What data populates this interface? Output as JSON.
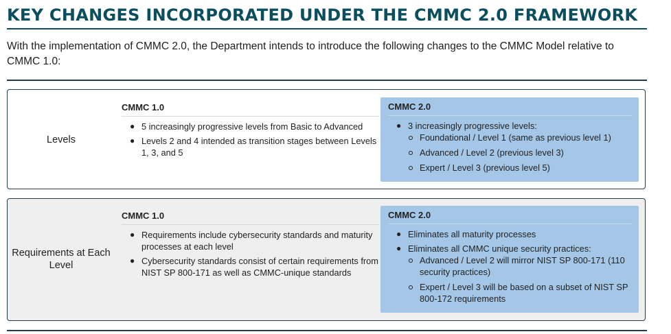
{
  "title": "KEY CHANGES INCORPORATED UNDER THE CMMC 2.0 FRAMEWORK",
  "intro": "With the implementation of CMMC 2.0, the Department intends to introduce the following changes to the CMMC Model relative to CMMC 1.0:",
  "colors": {
    "title": "#0b4f5f",
    "highlight": "#a4c7e8",
    "shaded_row": "#efefef",
    "border": "#1f3d4f"
  },
  "rows": [
    {
      "label": "Levels",
      "old": {
        "heading": "CMMC 1.0",
        "bullets": [
          "5 increasingly progressive levels from Basic to Advanced",
          "Levels 2 and 4 intended as transition stages between Levels 1, 3, and 5"
        ]
      },
      "new": {
        "heading": "CMMC 2.0",
        "bullets": [
          {
            "text": "3 increasingly progressive levels:",
            "sub": [
              "Foundational / Level 1 (same as previous level 1)",
              "Advanced / Level 2 (previous level 3)",
              "Expert / Level 3 (previous level 5)"
            ]
          }
        ]
      }
    },
    {
      "label": "Requirements at Each Level",
      "old": {
        "heading": "CMMC 1.0",
        "bullets": [
          "Requirements include cybersecurity standards and maturity processes at each level",
          "Cybersecurity standards consist of certain requirements from NIST SP 800-171 as well as CMMC-unique standards"
        ]
      },
      "new": {
        "heading": "CMMC 2.0",
        "bullets": [
          {
            "text": "Eliminates all maturity processes",
            "sub": []
          },
          {
            "text": "Eliminates all CMMC unique security practices:",
            "sub": [
              "Advanced / Level 2 will mirror NIST SP 800-171 (110 security practices)",
              "Expert / Level 3 will be based on a subset of NIST SP 800-172 requirements"
            ]
          }
        ]
      }
    }
  ]
}
